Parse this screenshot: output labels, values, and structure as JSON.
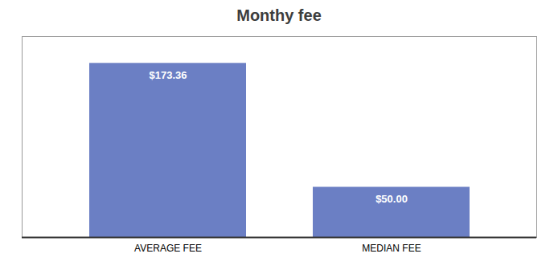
{
  "chart_data": {
    "type": "bar",
    "title": "Monthy fee",
    "categories": [
      "AVERAGE FEE",
      "MEDIAN FEE"
    ],
    "values": [
      173.36,
      50.0
    ],
    "value_labels": [
      "$173.36",
      "$50.00"
    ],
    "data_labels": true,
    "color": "#6b7fc4",
    "ylim": [
      0,
      200
    ],
    "grid": false,
    "tick_labels": "x"
  }
}
